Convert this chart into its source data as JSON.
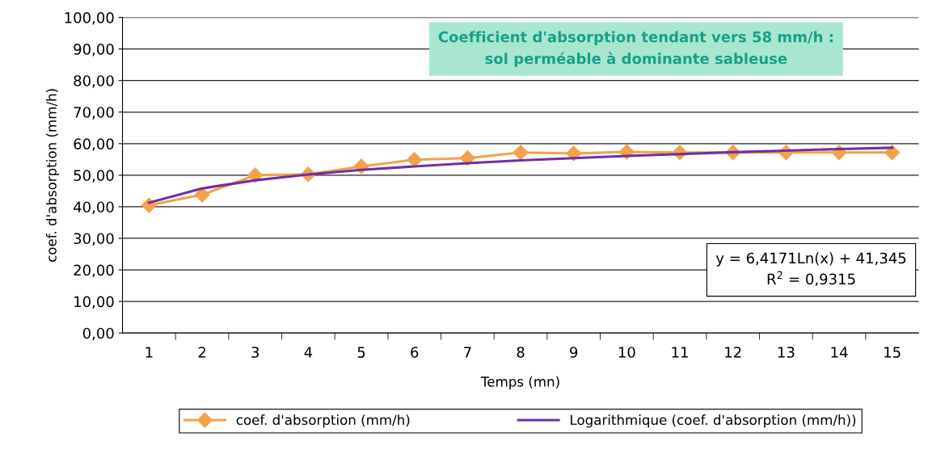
{
  "chart_data": {
    "type": "line",
    "title": "Coefficient d'absorption tendant vers 58 mm/h :\nsol perméable à dominante sableuse",
    "xlabel": "Temps (mn)",
    "ylabel": "coef. d'absorption (mm/h)",
    "categories": [
      "1",
      "2",
      "3",
      "4",
      "5",
      "6",
      "7",
      "8",
      "9",
      "10",
      "11",
      "12",
      "13",
      "14",
      "15"
    ],
    "series": [
      {
        "name": "coef. d'absorption (mm/h)",
        "color": "#f5a04a",
        "marker": "diamond",
        "values": [
          40.5,
          43.8,
          50.0,
          50.3,
          52.8,
          54.9,
          55.4,
          57.2,
          56.9,
          57.4,
          57.2,
          57.2,
          57.2,
          57.2,
          57.2
        ]
      },
      {
        "name": "Logarithmique (coef. d'absorption (mm/h))",
        "color": "#7030a0",
        "marker": "none",
        "values": [
          41.3,
          45.8,
          48.4,
          50.2,
          51.7,
          52.8,
          53.8,
          54.7,
          55.4,
          56.1,
          56.7,
          57.3,
          57.8,
          58.3,
          58.7
        ]
      }
    ],
    "ylim": [
      0,
      100
    ],
    "yticks": [
      {
        "value": 0,
        "label": "0,00"
      },
      {
        "value": 10,
        "label": "10,00"
      },
      {
        "value": 20,
        "label": "20,00"
      },
      {
        "value": 30,
        "label": "30,00"
      },
      {
        "value": 40,
        "label": "40,00"
      },
      {
        "value": 50,
        "label": "50,00"
      },
      {
        "value": 60,
        "label": "60,00"
      },
      {
        "value": 70,
        "label": "70,00"
      },
      {
        "value": 80,
        "label": "80,00"
      },
      {
        "value": 90,
        "label": "90,00"
      },
      {
        "value": 100,
        "label": "100,00"
      }
    ],
    "grid": "y",
    "legend": "bottom",
    "annotations": [
      "y = 6,4171Ln(x) + 41,345\nR$^{2}$ = 0,9315"
    ]
  }
}
